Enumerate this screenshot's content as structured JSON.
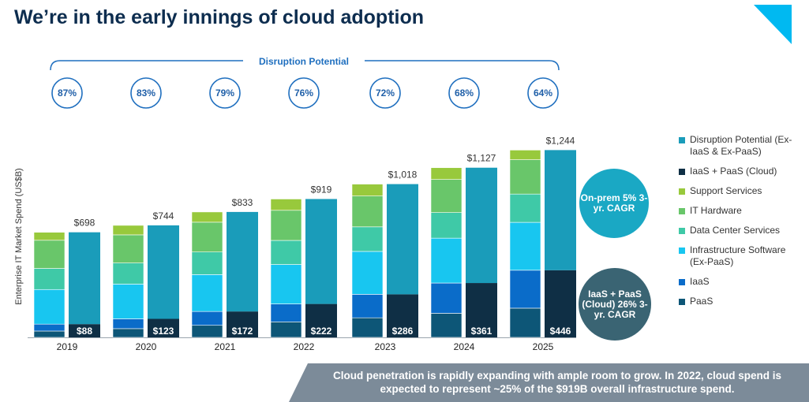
{
  "title": "We’re in the early innings of cloud adoption",
  "brace_label": "Disruption Potential",
  "onprem_label": "On-prem 5% 3-yr. CAGR",
  "cloud_label": "IaaS + PaaS (Cloud) 26% 3-yr. CAGR",
  "banner": "Cloud penetration is rapidly expanding with ample room to grow.  In 2022, cloud spend is expected to represent ~25% of the $919B overall infrastructure spend.",
  "colors": {
    "disruption": "#1a9cba",
    "cloud": "#0f2f45",
    "support": "#98c93c",
    "hardware": "#69c66a",
    "datacenter": "#3fc9a7",
    "infra_software": "#18c6f0",
    "iaas": "#0a6cc9",
    "paas": "#0d5677",
    "circle_stroke": "#1f6fbf"
  },
  "legend": [
    {
      "key": "disruption",
      "label": "Disruption Potential (Ex-IaaS & Ex-PaaS)"
    },
    {
      "key": "cloud",
      "label": "IaaS + PaaS (Cloud)"
    },
    {
      "key": "support",
      "label": "Support Services"
    },
    {
      "key": "hardware",
      "label": "IT Hardware"
    },
    {
      "key": "datacenter",
      "label": "Data Center Services"
    },
    {
      "key": "infra_software",
      "label": "Infrastructure Software (Ex-PaaS)"
    },
    {
      "key": "iaas",
      "label": "IaaS"
    },
    {
      "key": "paas",
      "label": "PaaS"
    }
  ],
  "chart_data": {
    "type": "bar",
    "ylabel": "Enterprise IT Market Spend (US$B)",
    "categories": [
      "2019",
      "2020",
      "2021",
      "2022",
      "2023",
      "2024",
      "2025"
    ],
    "total_labels": [
      "$698",
      "$744",
      "$833",
      "$919",
      "$1,018",
      "$1,127",
      "$1,244"
    ],
    "totals": [
      698,
      744,
      833,
      919,
      1018,
      1127,
      1244
    ],
    "cloud_labels": [
      "$88",
      "$123",
      "$172",
      "$222",
      "$286",
      "$361",
      "$446"
    ],
    "cloud": [
      88,
      123,
      172,
      222,
      286,
      361,
      446
    ],
    "disruption_potential_labels": [
      "87%",
      "83%",
      "79%",
      "76%",
      "72%",
      "68%",
      "64%"
    ],
    "disruption_potential": [
      87,
      83,
      79,
      76,
      72,
      68,
      64
    ],
    "left_stack_series": [
      {
        "name": "PaaS",
        "key": "paas",
        "values": [
          42,
          58,
          80,
          103,
          130,
          160,
          194
        ]
      },
      {
        "name": "IaaS",
        "key": "iaas",
        "values": [
          46,
          65,
          92,
          119,
          156,
          201,
          252
        ]
      },
      {
        "name": "Infrastructure Software (Ex-PaaS)",
        "key": "infra_software",
        "values": [
          230,
          231,
          245,
          262,
          285,
          298,
          318
        ]
      },
      {
        "name": "Data Center Services",
        "key": "datacenter",
        "values": [
          140,
          140,
          150,
          160,
          163,
          170,
          188
        ]
      },
      {
        "name": "IT Hardware",
        "key": "hardware",
        "values": [
          187,
          187,
          198,
          200,
          205,
          220,
          228
        ]
      },
      {
        "name": "Support Services",
        "key": "support",
        "values": [
          53,
          63,
          68,
          75,
          79,
          78,
          64
        ]
      }
    ]
  }
}
